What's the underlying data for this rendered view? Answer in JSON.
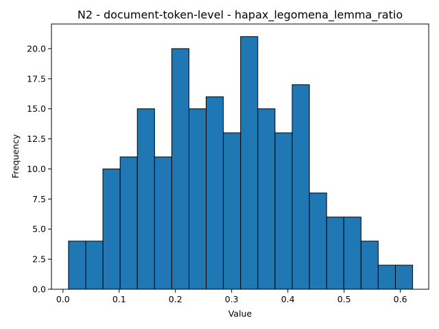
{
  "chart_data": {
    "type": "bar",
    "title": "N2 - document-token-level - hapax_legomena_lemma_ratio",
    "xlabel": "Value",
    "ylabel": "Frequency",
    "xlim": [
      -0.0205,
      0.6505
    ],
    "ylim": [
      0,
      22.05
    ],
    "xticks": [
      0.0,
      0.1,
      0.2,
      0.3,
      0.4,
      0.5,
      0.6
    ],
    "xtick_labels": [
      "0.0",
      "0.1",
      "0.2",
      "0.3",
      "0.4",
      "0.5",
      "0.6"
    ],
    "yticks": [
      0.0,
      2.5,
      5.0,
      7.5,
      10.0,
      12.5,
      15.0,
      17.5,
      20.0
    ],
    "ytick_labels": [
      "0.0",
      "2.5",
      "5.0",
      "7.5",
      "10.0",
      "12.5",
      "15.0",
      "17.5",
      "20.0"
    ],
    "bin_start": 0.0099,
    "bin_width": 0.0306,
    "values": [
      4,
      4,
      10,
      11,
      15,
      11,
      20,
      15,
      16,
      13,
      21,
      15,
      13,
      17,
      8,
      6,
      6,
      4,
      2,
      2
    ],
    "bar_color": "#1f77b4",
    "edge_color": "#000000",
    "grid": false,
    "legend": false
  }
}
